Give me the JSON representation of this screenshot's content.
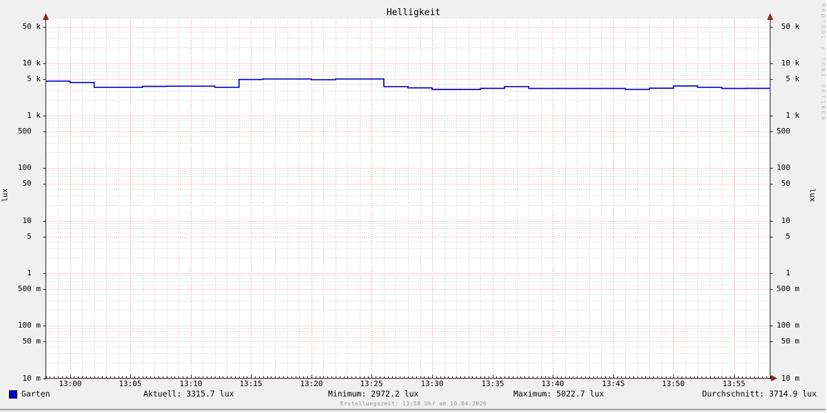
{
  "title": "Helligkeit",
  "watermark": "RRDTOOL / TOBI OETIKER",
  "axes": {
    "unit_label_left": "lux",
    "unit_label_right": "lux",
    "y_ticks": [
      {
        "v": 50000,
        "label": "50 k"
      },
      {
        "v": 10000,
        "label": "10 k"
      },
      {
        "v": 5000,
        "label": "5 k"
      },
      {
        "v": 1000,
        "label": "1 k"
      },
      {
        "v": 500,
        "label": "500"
      },
      {
        "v": 100,
        "label": "100"
      },
      {
        "v": 50,
        "label": "50"
      },
      {
        "v": 10,
        "label": "10"
      },
      {
        "v": 5,
        "label": "5"
      },
      {
        "v": 1,
        "label": "1"
      },
      {
        "v": 0.5,
        "label": "500 m"
      },
      {
        "v": 0.1,
        "label": "100 m"
      },
      {
        "v": 0.05,
        "label": "50 m"
      },
      {
        "v": 0.01,
        "label": "10 m"
      }
    ],
    "x_ticks": [
      {
        "m": 0,
        "label": "13:00"
      },
      {
        "m": 5,
        "label": "13:05"
      },
      {
        "m": 10,
        "label": "13:10"
      },
      {
        "m": 15,
        "label": "13:15"
      },
      {
        "m": 20,
        "label": "13:20"
      },
      {
        "m": 25,
        "label": "13:25"
      },
      {
        "m": 30,
        "label": "13:30"
      },
      {
        "m": 35,
        "label": "13:35"
      },
      {
        "m": 40,
        "label": "13:40"
      },
      {
        "m": 45,
        "label": "13:45"
      },
      {
        "m": 50,
        "label": "13:50"
      },
      {
        "m": 55,
        "label": "13:55"
      }
    ]
  },
  "legend": {
    "series_label": "Garten",
    "series_color": "#0000cc",
    "stats": [
      {
        "name": "aktuell",
        "text": "Aktuell: 3315.7 lux"
      },
      {
        "name": "minimum",
        "text": "Minimum: 2972.2 lux"
      },
      {
        "name": "maximum",
        "text": "Maximum: 5022.7 lux"
      },
      {
        "name": "durchschnitt",
        "text": "Durchschnitt: 3714.9 lux"
      }
    ]
  },
  "footer": "Erstellungszeit: 13:58 Uhr am 10.04.2026",
  "chart_data": {
    "type": "line",
    "line_style": "step-after",
    "title": "Helligkeit",
    "xlabel": "",
    "ylabel": "lux",
    "yscale": "log",
    "ylim": [
      0.01,
      50000
    ],
    "xlim": [
      "12:58",
      "13:58"
    ],
    "grid": {
      "major_color": "#f08c8c",
      "minor_color": "#c9c9c9",
      "x_major_step_min": 5,
      "x_minor_step_min": 1,
      "y_major_at": "1 and 5 times powers of ten",
      "style": "dotted"
    },
    "series": [
      {
        "name": "Garten",
        "color": "#0000cc",
        "unit": "lux",
        "points": [
          [
            "12:58",
            4560
          ],
          [
            "13:00",
            4300
          ],
          [
            "13:02",
            3480
          ],
          [
            "13:06",
            3620
          ],
          [
            "13:08",
            3650
          ],
          [
            "13:12",
            3480
          ],
          [
            "13:14",
            4900
          ],
          [
            "13:16",
            5020
          ],
          [
            "13:20",
            4850
          ],
          [
            "13:22",
            5020
          ],
          [
            "13:26",
            3590
          ],
          [
            "13:28",
            3400
          ],
          [
            "13:30",
            3170
          ],
          [
            "13:34",
            3310
          ],
          [
            "13:36",
            3590
          ],
          [
            "13:38",
            3300
          ],
          [
            "13:46",
            3180
          ],
          [
            "13:48",
            3340
          ],
          [
            "13:50",
            3680
          ],
          [
            "13:52",
            3480
          ],
          [
            "13:54",
            3300
          ],
          [
            "13:56",
            3316
          ],
          [
            "13:58",
            3316
          ]
        ]
      }
    ],
    "stats": {
      "aktuell_lux": 3315.7,
      "minimum_lux": 2972.2,
      "maximum_lux": 5022.7,
      "durchschnitt_lux": 3714.9
    }
  }
}
